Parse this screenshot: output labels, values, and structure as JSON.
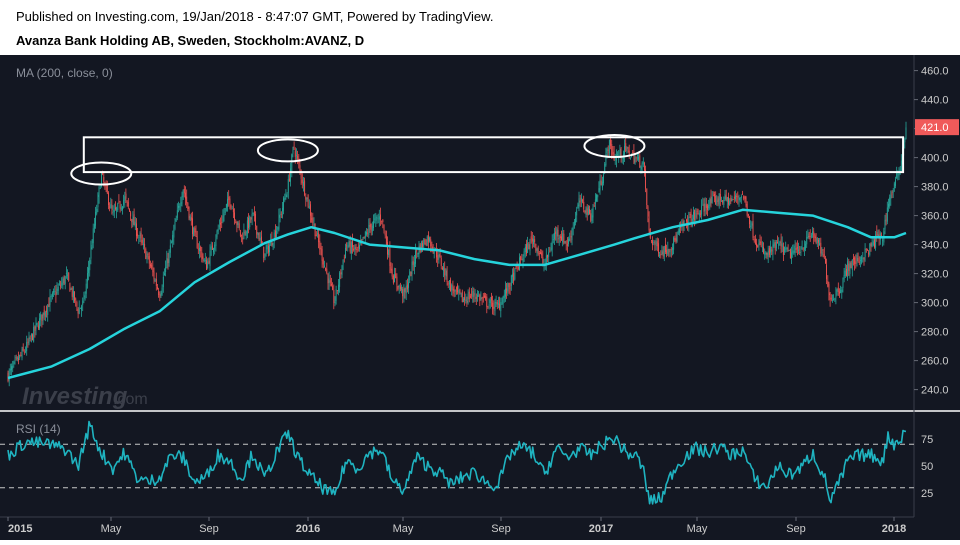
{
  "header": {
    "published": "Published on Investing.com, 19/Jan/2018 - 8:47:07 GMT, Powered by TradingView.",
    "instrument": "Avanza Bank Holding AB, Sweden, Stockholm:AVANZ, D"
  },
  "watermark": {
    "brand": "Investing",
    "suffix": ".com"
  },
  "colors": {
    "background": "#131722",
    "up_candle": "#26a69a",
    "down_candle": "#ef5350",
    "ma_line": "#26d4dc",
    "rsi_line": "#1fb3c0",
    "price_tag": "#f05a5a",
    "annotation": "#ffffff",
    "axis_text": "#cccccc"
  },
  "chart_data": [
    {
      "type": "candlestick",
      "indicator_label": "MA (200, close, 0)",
      "x_tick_labels": [
        "2015",
        "May",
        "Sep",
        "2016",
        "May",
        "Sep",
        "2017",
        "May",
        "Sep",
        "2018"
      ],
      "y_ticks": [
        240,
        260,
        280,
        300,
        320,
        340,
        360,
        380,
        400,
        420,
        440,
        460
      ],
      "y_tick_labels": [
        "240.0",
        "260.0",
        "280.0",
        "300.0",
        "320.0",
        "340.0",
        "360.0",
        "380.0",
        "400.0",
        "420.0",
        "440.0",
        "460.0"
      ],
      "ylim": [
        228,
        468
      ],
      "last_price": 421,
      "last_price_label": "421.0",
      "close_path": [
        [
          0,
          250
        ],
        [
          6,
          268
        ],
        [
          14,
          300
        ],
        [
          20,
          318
        ],
        [
          24,
          295
        ],
        [
          26,
          300
        ],
        [
          28,
          330
        ],
        [
          32,
          388
        ],
        [
          36,
          360
        ],
        [
          40,
          372
        ],
        [
          44,
          350
        ],
        [
          48,
          330
        ],
        [
          52,
          306
        ],
        [
          56,
          340
        ],
        [
          60,
          380
        ],
        [
          64,
          345
        ],
        [
          68,
          325
        ],
        [
          72,
          350
        ],
        [
          76,
          372
        ],
        [
          80,
          345
        ],
        [
          84,
          360
        ],
        [
          88,
          332
        ],
        [
          92,
          350
        ],
        [
          96,
          380
        ],
        [
          98,
          408
        ],
        [
          100,
          392
        ],
        [
          104,
          360
        ],
        [
          108,
          330
        ],
        [
          112,
          300
        ],
        [
          116,
          340
        ],
        [
          120,
          335
        ],
        [
          124,
          352
        ],
        [
          128,
          360
        ],
        [
          132,
          318
        ],
        [
          136,
          305
        ],
        [
          140,
          335
        ],
        [
          144,
          345
        ],
        [
          148,
          330
        ],
        [
          152,
          310
        ],
        [
          156,
          302
        ],
        [
          160,
          306
        ],
        [
          164,
          300
        ],
        [
          168,
          297
        ],
        [
          172,
          312
        ],
        [
          176,
          330
        ],
        [
          180,
          345
        ],
        [
          184,
          325
        ],
        [
          188,
          350
        ],
        [
          192,
          340
        ],
        [
          196,
          370
        ],
        [
          200,
          360
        ],
        [
          204,
          388
        ],
        [
          206,
          410
        ],
        [
          208,
          400
        ],
        [
          212,
          405
        ],
        [
          216,
          398
        ],
        [
          218,
          395
        ],
        [
          220,
          345
        ],
        [
          224,
          335
        ],
        [
          228,
          340
        ],
        [
          232,
          355
        ],
        [
          236,
          360
        ],
        [
          240,
          368
        ],
        [
          244,
          372
        ],
        [
          248,
          370
        ],
        [
          252,
          375
        ],
        [
          256,
          345
        ],
        [
          260,
          332
        ],
        [
          264,
          340
        ],
        [
          268,
          333
        ],
        [
          272,
          338
        ],
        [
          276,
          348
        ],
        [
          280,
          330
        ],
        [
          282,
          302
        ],
        [
          286,
          312
        ],
        [
          288,
          325
        ],
        [
          292,
          330
        ],
        [
          296,
          338
        ],
        [
          298,
          345
        ],
        [
          300,
          345
        ],
        [
          302,
          370
        ],
        [
          304,
          380
        ],
        [
          306,
          395
        ],
        [
          308,
          421
        ]
      ],
      "ma_path": [
        [
          0,
          248
        ],
        [
          15,
          256
        ],
        [
          28,
          268
        ],
        [
          40,
          282
        ],
        [
          52,
          294
        ],
        [
          64,
          314
        ],
        [
          76,
          328
        ],
        [
          88,
          341
        ],
        [
          96,
          347
        ],
        [
          104,
          352
        ],
        [
          112,
          348
        ],
        [
          124,
          340
        ],
        [
          136,
          338
        ],
        [
          148,
          336
        ],
        [
          160,
          330
        ],
        [
          172,
          326
        ],
        [
          184,
          326
        ],
        [
          196,
          333
        ],
        [
          208,
          340
        ],
        [
          216,
          345
        ],
        [
          228,
          352
        ],
        [
          240,
          357
        ],
        [
          252,
          364
        ],
        [
          264,
          362
        ],
        [
          276,
          360
        ],
        [
          288,
          352
        ],
        [
          296,
          345
        ],
        [
          304,
          345
        ],
        [
          308,
          348
        ]
      ],
      "annotations": {
        "resistance_box": {
          "x_start": 26,
          "x_end": 307,
          "y_low": 390,
          "y_high": 414
        },
        "ellipses": [
          {
            "x": 32,
            "y": 389
          },
          {
            "x": 96,
            "y": 405
          },
          {
            "x": 208,
            "y": 408
          }
        ]
      }
    },
    {
      "type": "line",
      "indicator_label": "RSI (14)",
      "y_ticks": [
        25,
        50,
        75
      ],
      "y_tick_labels": [
        "25",
        "50",
        "75"
      ],
      "ylim": [
        5,
        95
      ],
      "overbought": 70,
      "oversold": 30,
      "rsi_path": [
        [
          0,
          60
        ],
        [
          6,
          72
        ],
        [
          14,
          70
        ],
        [
          20,
          65
        ],
        [
          24,
          50
        ],
        [
          28,
          88
        ],
        [
          32,
          62
        ],
        [
          36,
          48
        ],
        [
          40,
          62
        ],
        [
          44,
          40
        ],
        [
          48,
          35
        ],
        [
          52,
          40
        ],
        [
          56,
          60
        ],
        [
          60,
          58
        ],
        [
          64,
          35
        ],
        [
          68,
          40
        ],
        [
          72,
          60
        ],
        [
          76,
          55
        ],
        [
          80,
          38
        ],
        [
          84,
          62
        ],
        [
          88,
          38
        ],
        [
          92,
          62
        ],
        [
          96,
          80
        ],
        [
          100,
          55
        ],
        [
          104,
          40
        ],
        [
          108,
          30
        ],
        [
          112,
          22
        ],
        [
          116,
          55
        ],
        [
          120,
          48
        ],
        [
          124,
          62
        ],
        [
          128,
          65
        ],
        [
          132,
          35
        ],
        [
          136,
          28
        ],
        [
          140,
          58
        ],
        [
          144,
          50
        ],
        [
          148,
          44
        ],
        [
          152,
          33
        ],
        [
          156,
          40
        ],
        [
          160,
          44
        ],
        [
          164,
          35
        ],
        [
          168,
          32
        ],
        [
          172,
          60
        ],
        [
          176,
          68
        ],
        [
          180,
          62
        ],
        [
          184,
          42
        ],
        [
          188,
          66
        ],
        [
          192,
          58
        ],
        [
          196,
          66
        ],
        [
          200,
          60
        ],
        [
          204,
          70
        ],
        [
          208,
          76
        ],
        [
          212,
          62
        ],
        [
          216,
          58
        ],
        [
          218,
          45
        ],
        [
          220,
          18
        ],
        [
          224,
          20
        ],
        [
          228,
          45
        ],
        [
          232,
          58
        ],
        [
          236,
          66
        ],
        [
          240,
          62
        ],
        [
          244,
          68
        ],
        [
          248,
          60
        ],
        [
          252,
          65
        ],
        [
          256,
          38
        ],
        [
          260,
          30
        ],
        [
          264,
          50
        ],
        [
          268,
          42
        ],
        [
          272,
          48
        ],
        [
          276,
          62
        ],
        [
          280,
          40
        ],
        [
          282,
          18
        ],
        [
          286,
          40
        ],
        [
          288,
          55
        ],
        [
          292,
          60
        ],
        [
          296,
          60
        ],
        [
          300,
          55
        ],
        [
          302,
          78
        ],
        [
          304,
          70
        ],
        [
          306,
          75
        ],
        [
          308,
          82
        ]
      ]
    }
  ]
}
